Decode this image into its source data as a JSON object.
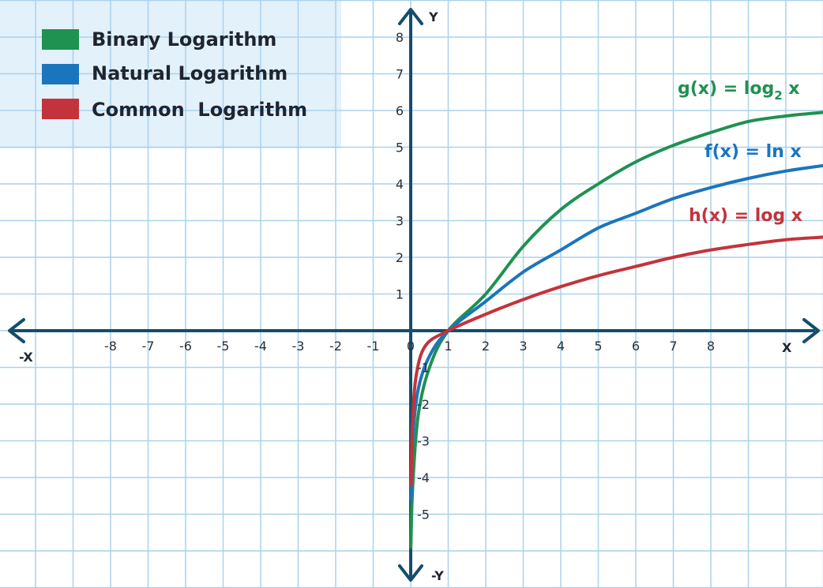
{
  "chart_data": {
    "type": "line",
    "axis_labels": {
      "x_pos": "X",
      "x_neg": "-X",
      "y_pos": "Y",
      "y_neg": "-Y"
    },
    "x_ticks": [
      "-8",
      "-7",
      "-6",
      "-5",
      "-4",
      "-3",
      "-2",
      "-1",
      "0",
      "1",
      "2",
      "3",
      "4",
      "5",
      "6",
      "7",
      "8"
    ],
    "y_ticks": [
      "8",
      "7",
      "6",
      "5",
      "4",
      "3",
      "2",
      "1",
      "-1",
      "-2",
      "-3",
      "-4",
      "-5"
    ],
    "xlim": [
      -11,
      11
    ],
    "ylim": [
      -6.5,
      8.7
    ],
    "grid": true,
    "legend_position": "top-left",
    "legend": [
      {
        "name": "Binary Logarithm",
        "color": "#1f9150"
      },
      {
        "name": "Natural Logarithm",
        "color": "#1b75bc"
      },
      {
        "name": "Common  Logarithm",
        "color": "#c4333b"
      }
    ],
    "series": [
      {
        "name": "Binary Logarithm",
        "label_main": "g(x) = log",
        "label_sub": "2",
        "label_tail": " x",
        "color": "#1f9150",
        "points": [
          [
            0.005,
            -5.9
          ],
          [
            0.05,
            -4.3
          ],
          [
            0.2,
            -2.3
          ],
          [
            0.5,
            -1.0
          ],
          [
            1,
            0
          ],
          [
            2,
            1.0
          ],
          [
            3,
            2.3
          ],
          [
            4,
            3.3
          ],
          [
            5,
            4.0
          ],
          [
            6,
            4.6
          ],
          [
            7,
            5.05
          ],
          [
            8,
            5.4
          ],
          [
            9,
            5.7
          ],
          [
            10,
            5.85
          ],
          [
            11,
            5.95
          ]
        ]
      },
      {
        "name": "Natural Logarithm",
        "label_main": "f(x) = ln x",
        "label_sub": "",
        "label_tail": "",
        "color": "#1b75bc",
        "points": [
          [
            0.01,
            -4.6
          ],
          [
            0.05,
            -3.0
          ],
          [
            0.2,
            -1.6
          ],
          [
            0.5,
            -0.69
          ],
          [
            1,
            0
          ],
          [
            2,
            0.8
          ],
          [
            3,
            1.6
          ],
          [
            4,
            2.2
          ],
          [
            5,
            2.8
          ],
          [
            6,
            3.2
          ],
          [
            7,
            3.6
          ],
          [
            8,
            3.9
          ],
          [
            9,
            4.15
          ],
          [
            10,
            4.35
          ],
          [
            11,
            4.5
          ]
        ]
      },
      {
        "name": "Common  Logarithm",
        "label_main": "h(x) = log x",
        "label_sub": "",
        "label_tail": "",
        "color": "#c4333b",
        "points": [
          [
            0.01,
            -4.2
          ],
          [
            0.05,
            -2.5
          ],
          [
            0.15,
            -1.2
          ],
          [
            0.4,
            -0.4
          ],
          [
            1,
            0
          ],
          [
            2,
            0.45
          ],
          [
            3,
            0.85
          ],
          [
            4,
            1.2
          ],
          [
            5,
            1.5
          ],
          [
            6,
            1.75
          ],
          [
            7,
            2.0
          ],
          [
            8,
            2.2
          ],
          [
            9,
            2.35
          ],
          [
            10,
            2.48
          ],
          [
            11,
            2.55
          ]
        ]
      }
    ]
  }
}
